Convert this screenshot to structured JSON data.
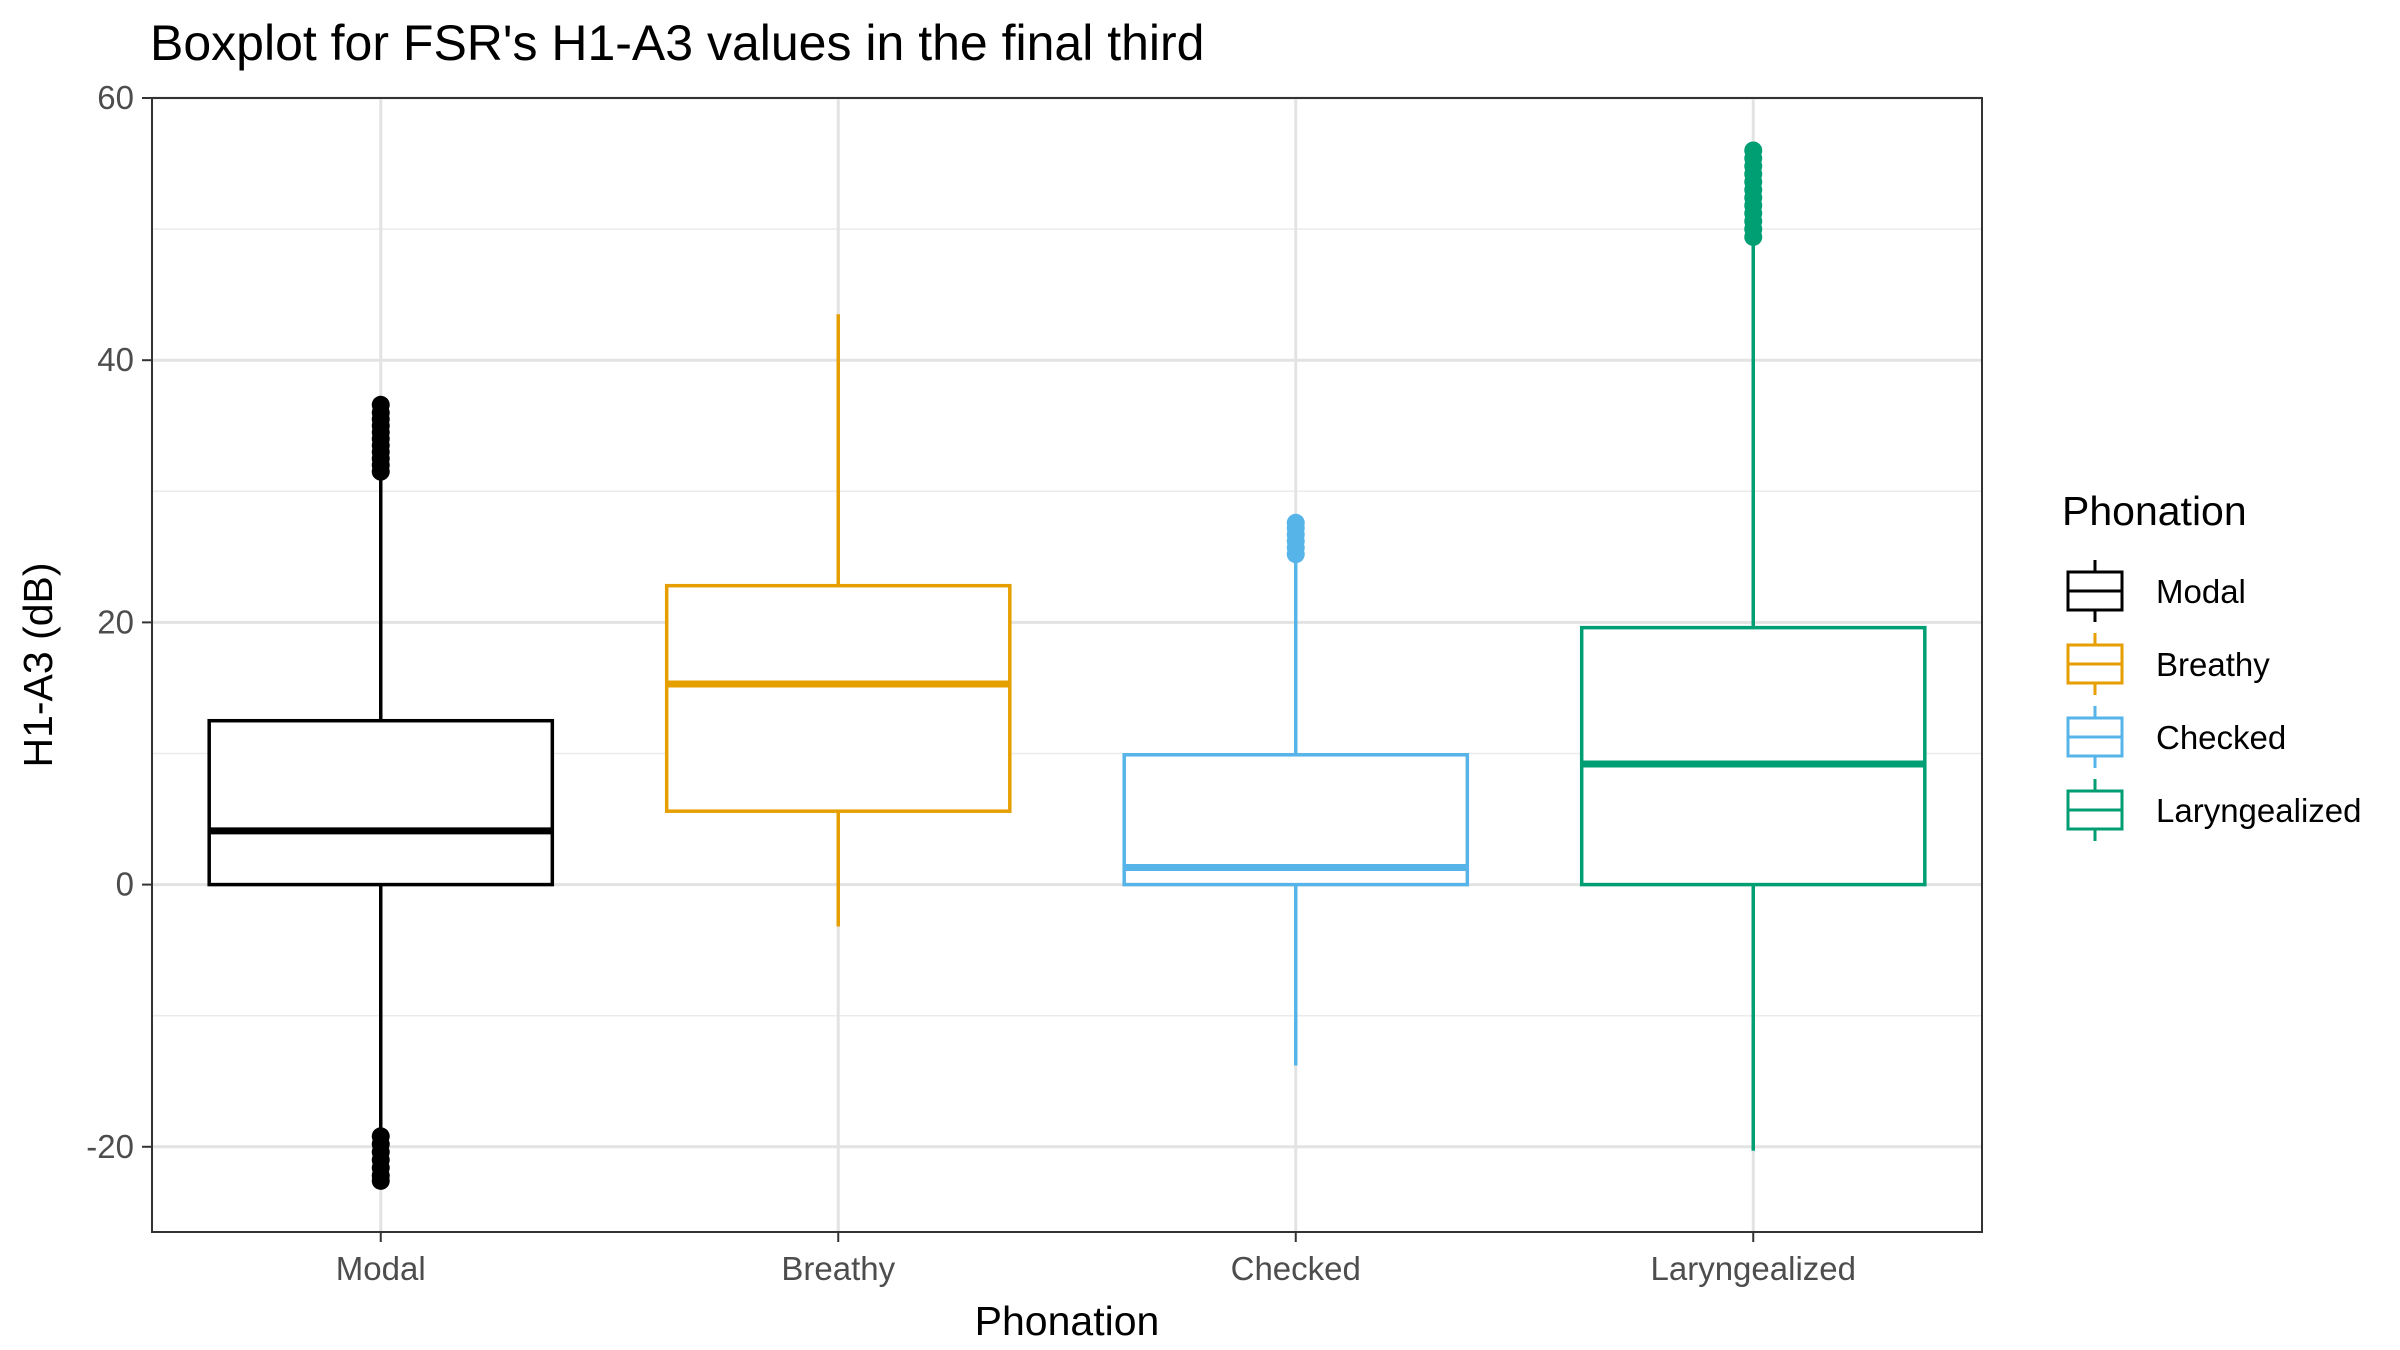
{
  "chart_data": {
    "type": "boxplot",
    "title": "Boxplot for FSR's H1-A3 values in the final third",
    "xlabel": "Phonation",
    "ylabel": "H1-A3 (dB)",
    "ylim": [
      -26.5,
      60
    ],
    "yticks": [
      -20,
      0,
      20,
      40,
      60
    ],
    "ytick_labels": [
      "-20",
      "0",
      "20",
      "40",
      "60"
    ],
    "grid": true,
    "legend": {
      "title": "Phonation",
      "position": "right"
    },
    "categories": [
      "Modal",
      "Breathy",
      "Checked",
      "Laryngealized"
    ],
    "series": [
      {
        "name": "Modal",
        "color": "#000000",
        "whisker_low": -18.8,
        "q1": 0.0,
        "median": 4.1,
        "q3": 12.5,
        "whisker_high": 31.2,
        "outliers": [
          31.5,
          32.0,
          32.5,
          33.0,
          33.5,
          34.0,
          34.5,
          35.0,
          35.5,
          36.0,
          36.6,
          -19.2,
          -19.8,
          -20.4,
          -21.0,
          -21.6,
          -22.2,
          -22.6
        ]
      },
      {
        "name": "Breathy",
        "color": "#E69F00",
        "whisker_low": -3.2,
        "q1": 5.6,
        "median": 15.3,
        "q3": 22.8,
        "whisker_high": 43.5,
        "outliers": []
      },
      {
        "name": "Checked",
        "color": "#56B4E9",
        "whisker_low": -13.8,
        "q1": 0.0,
        "median": 1.3,
        "q3": 9.9,
        "whisker_high": 24.8,
        "outliers": [
          25.2,
          25.7,
          26.2,
          26.7,
          27.2,
          27.6
        ]
      },
      {
        "name": "Laryngealized",
        "color": "#009E73",
        "whisker_low": -20.3,
        "q1": 0.0,
        "median": 9.2,
        "q3": 19.6,
        "whisker_high": 49.0,
        "outliers": [
          49.4,
          50.0,
          50.6,
          51.2,
          51.8,
          52.4,
          53.0,
          53.6,
          54.2,
          54.8,
          55.4,
          56.0
        ]
      }
    ]
  }
}
